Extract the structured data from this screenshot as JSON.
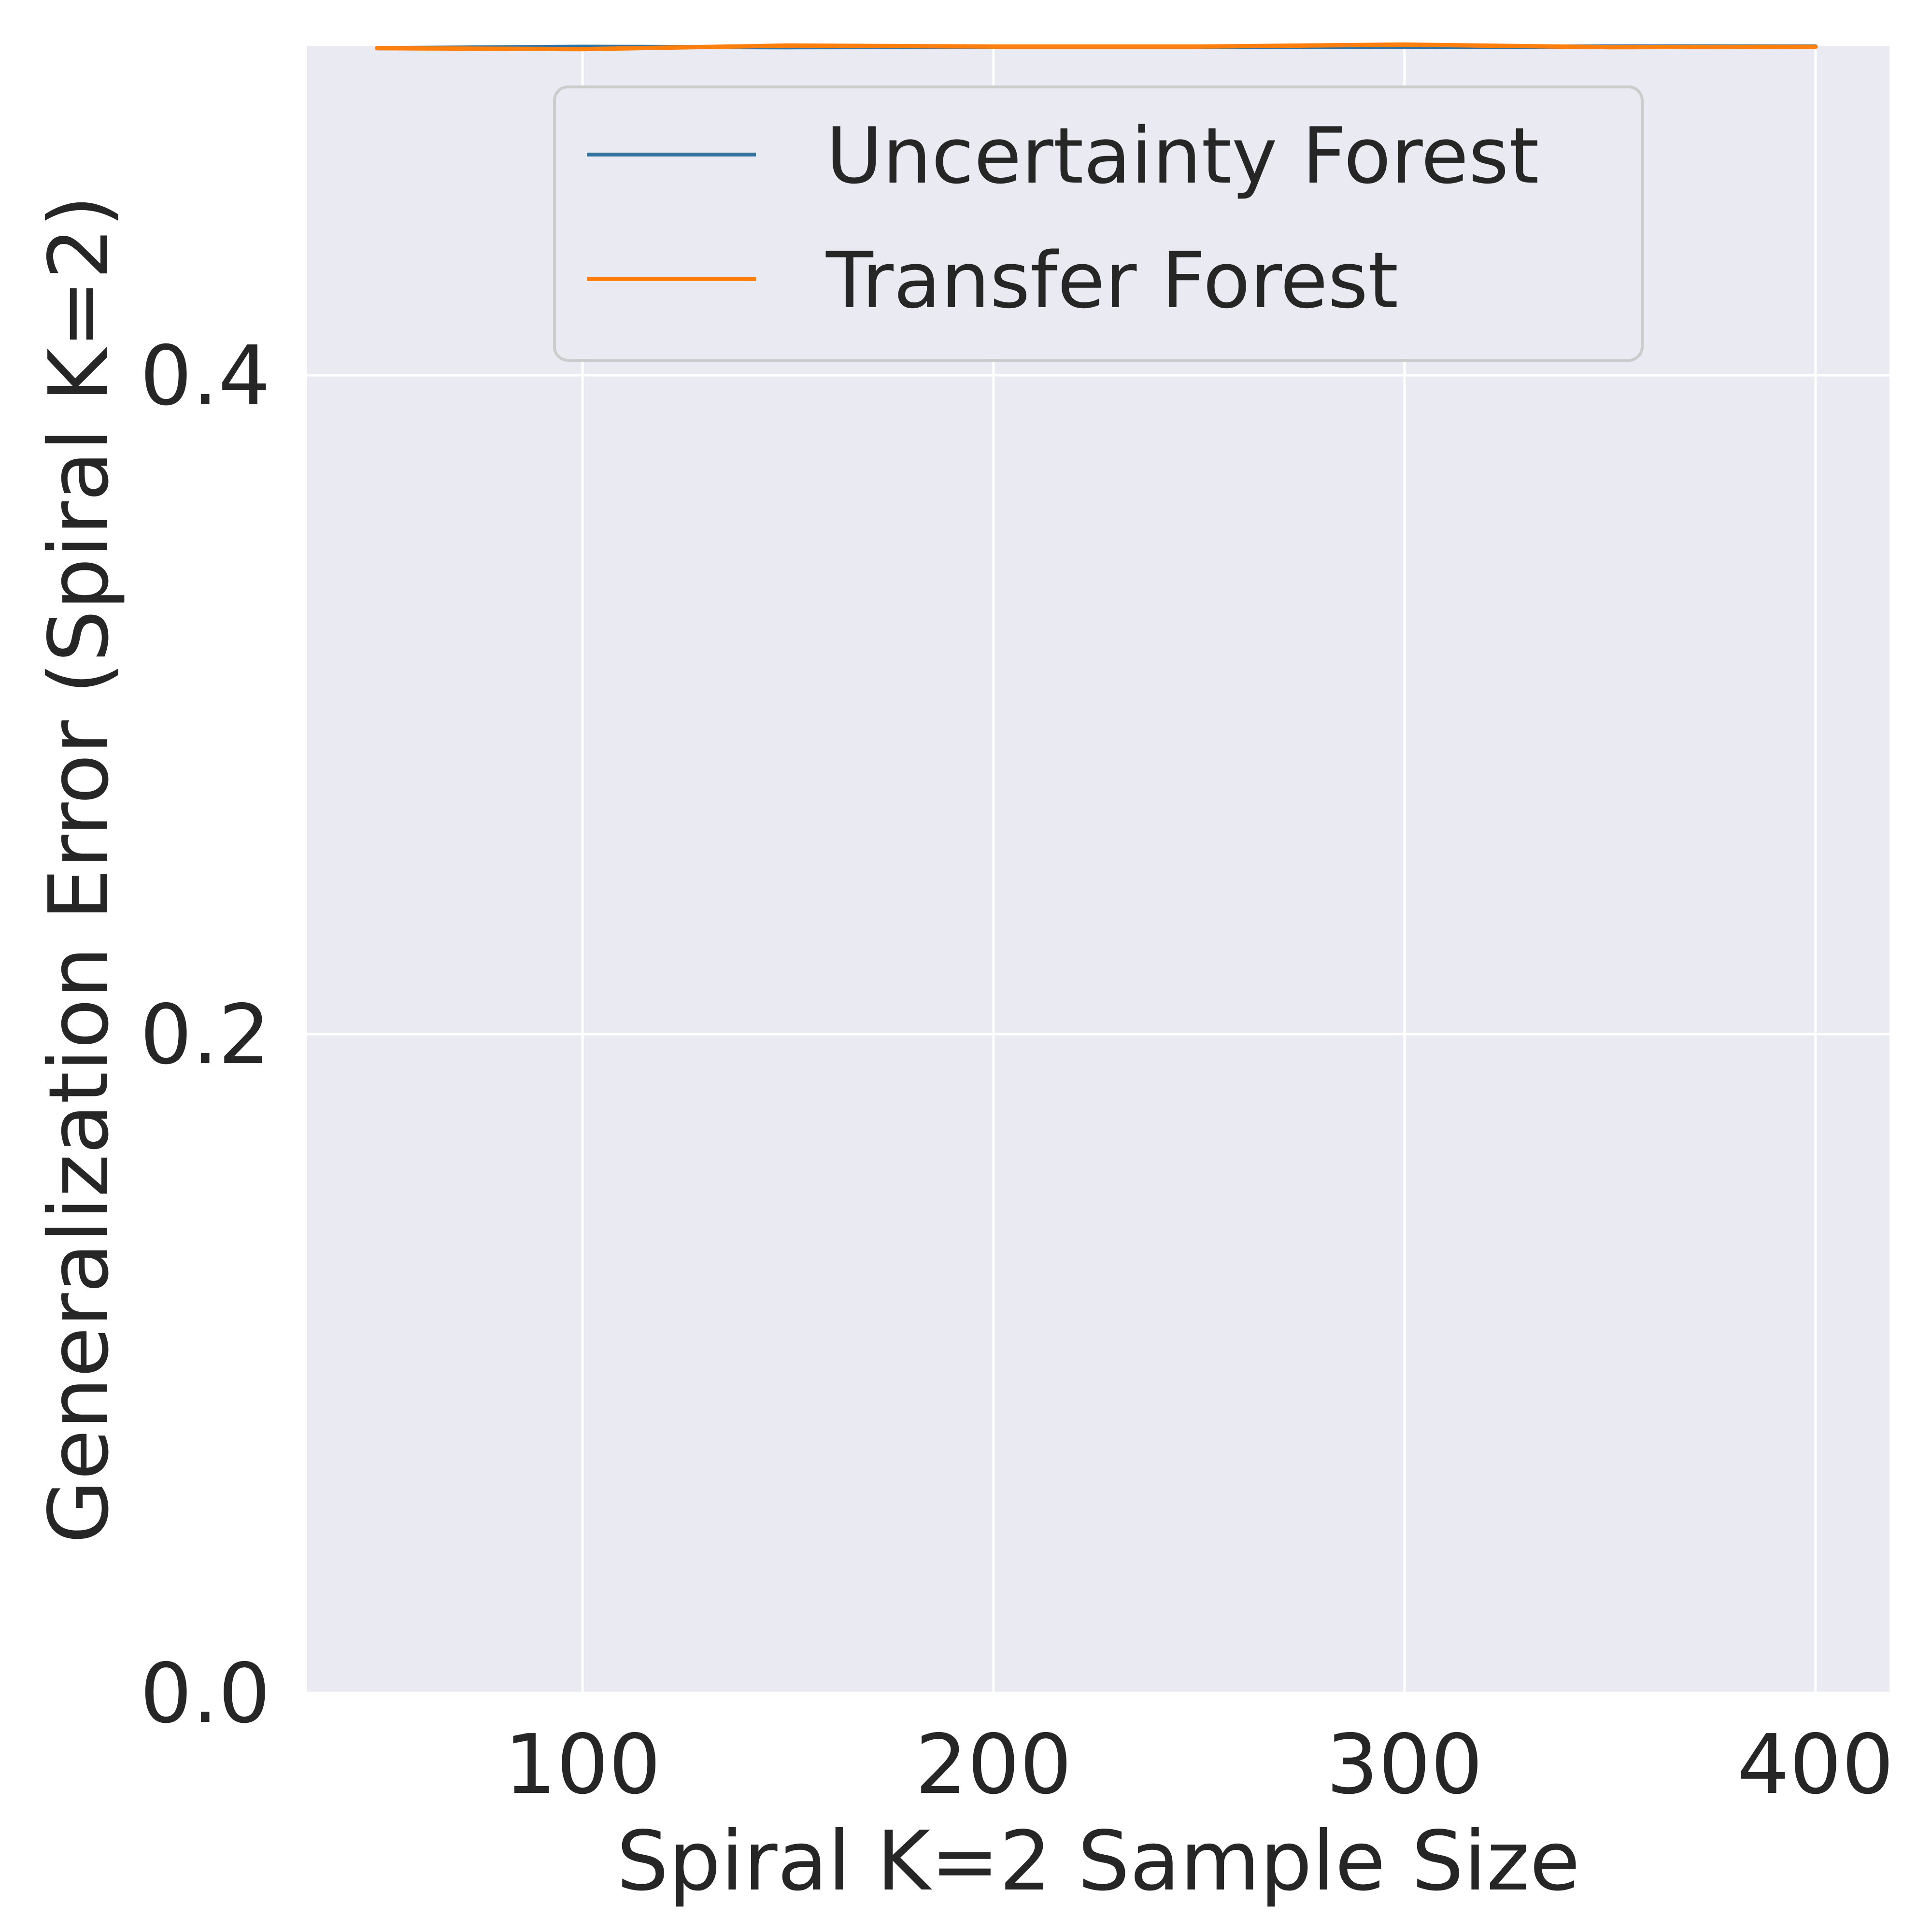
{
  "chart_data": {
    "type": "line",
    "xlabel": "Spiral K=2 Sample Size",
    "ylabel": "Generalization Error (Spiral K=2)",
    "xlim": [
      33,
      418
    ],
    "ylim": [
      0,
      0.5
    ],
    "xticks": [
      100,
      200,
      300,
      400
    ],
    "yticks": [
      0.0,
      0.2,
      0.4
    ],
    "ytick_labels": [
      "0.0",
      "0.2",
      "0.4"
    ],
    "xtick_labels": [
      "100",
      "200",
      "300",
      "400"
    ],
    "grid": true,
    "legend_position": "upper center",
    "x": [
      50,
      100,
      150,
      200,
      250,
      300,
      350,
      400
    ],
    "series": [
      {
        "name": "Uncertainty Forest",
        "color": "#3274a1",
        "values": [
          0.4993,
          0.4997,
          0.4996,
          0.4997,
          0.4997,
          0.4997,
          0.4998,
          0.4998
        ]
      },
      {
        "name": "Transfer Forest",
        "color": "#ff7f0e",
        "values": [
          0.4993,
          0.499,
          0.5001,
          0.4998,
          0.4998,
          0.5004,
          0.4996,
          0.4997
        ]
      }
    ]
  }
}
